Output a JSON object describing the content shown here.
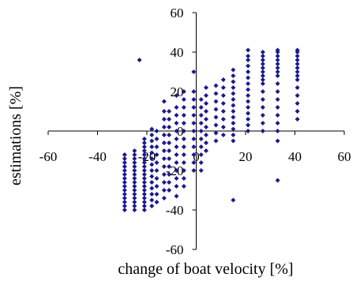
{
  "chart_data": {
    "type": "scatter",
    "title": "",
    "xlabel": "change of boat velocity [%]",
    "ylabel": "estimations [%]",
    "xlim": [
      -60,
      60
    ],
    "ylim": [
      -60,
      60
    ],
    "xticks": [
      "-60",
      "-40",
      "-20",
      "0",
      "20",
      "40",
      "60"
    ],
    "yticks": [
      "60",
      "40",
      "20",
      "0",
      "-20",
      "-40",
      "-60"
    ],
    "grid": false,
    "legend": "none",
    "marker": "diamond",
    "color": "#1a1a8c",
    "series": [
      {
        "points": [
          [
            -29,
            -40
          ],
          [
            -29,
            -38
          ],
          [
            -29,
            -36
          ],
          [
            -29,
            -34
          ],
          [
            -29,
            -32
          ],
          [
            -29,
            -30
          ],
          [
            -29,
            -28
          ],
          [
            -29,
            -26
          ],
          [
            -29,
            -24
          ],
          [
            -29,
            -22
          ],
          [
            -29,
            -20
          ],
          [
            -29,
            -18
          ],
          [
            -29,
            -16
          ],
          [
            -29,
            -14
          ],
          [
            -29,
            -12
          ],
          [
            -25,
            -40
          ],
          [
            -25,
            -38
          ],
          [
            -25,
            -36
          ],
          [
            -25,
            -34
          ],
          [
            -25,
            -32
          ],
          [
            -25,
            -30
          ],
          [
            -25,
            -28
          ],
          [
            -25,
            -26
          ],
          [
            -25,
            -24
          ],
          [
            -25,
            -22
          ],
          [
            -25,
            -20
          ],
          [
            -25,
            -18
          ],
          [
            -25,
            -16
          ],
          [
            -25,
            -14
          ],
          [
            -25,
            -12
          ],
          [
            -25,
            -10
          ],
          [
            -23,
            36
          ],
          [
            -21,
            -40
          ],
          [
            -21,
            -38
          ],
          [
            -21,
            -36
          ],
          [
            -21,
            -34
          ],
          [
            -21,
            -32
          ],
          [
            -21,
            -30
          ],
          [
            -21,
            -28
          ],
          [
            -21,
            -26
          ],
          [
            -21,
            -24
          ],
          [
            -21,
            -22
          ],
          [
            -21,
            -20
          ],
          [
            -21,
            -18
          ],
          [
            -21,
            -16
          ],
          [
            -21,
            -14
          ],
          [
            -21,
            -12
          ],
          [
            -21,
            -10
          ],
          [
            -21,
            -8
          ],
          [
            -21,
            -6
          ],
          [
            -21,
            -4
          ],
          [
            -18,
            -38
          ],
          [
            -18,
            -35
          ],
          [
            -18,
            -32
          ],
          [
            -18,
            -29
          ],
          [
            -18,
            -26
          ],
          [
            -18,
            -23
          ],
          [
            -18,
            -20
          ],
          [
            -18,
            -17
          ],
          [
            -18,
            -14
          ],
          [
            -18,
            -11
          ],
          [
            -18,
            -8
          ],
          [
            -18,
            -5
          ],
          [
            -18,
            -2
          ],
          [
            -18,
            1
          ],
          [
            -16,
            -36
          ],
          [
            -16,
            -32
          ],
          [
            -16,
            -28
          ],
          [
            -16,
            -24
          ],
          [
            -16,
            -20
          ],
          [
            -16,
            -16
          ],
          [
            -16,
            -12
          ],
          [
            -16,
            -8
          ],
          [
            -16,
            -4
          ],
          [
            -16,
            0
          ],
          [
            -13,
            -34
          ],
          [
            -13,
            -30
          ],
          [
            -13,
            -26
          ],
          [
            -13,
            -22
          ],
          [
            -13,
            -18
          ],
          [
            -13,
            -14
          ],
          [
            -13,
            -10
          ],
          [
            -13,
            -6
          ],
          [
            -13,
            -2
          ],
          [
            -13,
            2
          ],
          [
            -13,
            6
          ],
          [
            -13,
            10
          ],
          [
            -13,
            15
          ],
          [
            -11,
            -30
          ],
          [
            -11,
            -26
          ],
          [
            -11,
            -22
          ],
          [
            -11,
            -18
          ],
          [
            -11,
            -14
          ],
          [
            -11,
            -10
          ],
          [
            -11,
            -6
          ],
          [
            -11,
            -2
          ],
          [
            -11,
            2
          ],
          [
            -11,
            6
          ],
          [
            -11,
            10
          ],
          [
            -8,
            -33
          ],
          [
            -8,
            -28
          ],
          [
            -8,
            -24
          ],
          [
            -8,
            -20
          ],
          [
            -8,
            -16
          ],
          [
            -8,
            -12
          ],
          [
            -8,
            -8
          ],
          [
            -8,
            -4
          ],
          [
            -8,
            0
          ],
          [
            -8,
            4
          ],
          [
            -8,
            8
          ],
          [
            -8,
            12
          ],
          [
            -8,
            18
          ],
          [
            -5,
            -28
          ],
          [
            -5,
            -24
          ],
          [
            -5,
            -20
          ],
          [
            -5,
            -16
          ],
          [
            -5,
            -12
          ],
          [
            -5,
            -8
          ],
          [
            -5,
            -4
          ],
          [
            -5,
            0
          ],
          [
            -5,
            4
          ],
          [
            -5,
            8
          ],
          [
            -5,
            12
          ],
          [
            -5,
            16
          ],
          [
            -5,
            20
          ],
          [
            -1,
            -20
          ],
          [
            -1,
            -16
          ],
          [
            -1,
            -12
          ],
          [
            -1,
            -8
          ],
          [
            -1,
            -4
          ],
          [
            -1,
            0
          ],
          [
            -1,
            4
          ],
          [
            -1,
            8
          ],
          [
            -1,
            12
          ],
          [
            -1,
            16
          ],
          [
            -1,
            20
          ],
          [
            -1,
            30
          ],
          [
            2,
            -20
          ],
          [
            2,
            -16
          ],
          [
            2,
            -12
          ],
          [
            2,
            -8
          ],
          [
            2,
            -4
          ],
          [
            2,
            0
          ],
          [
            2,
            4
          ],
          [
            2,
            8
          ],
          [
            2,
            12
          ],
          [
            2,
            16
          ],
          [
            4,
            -10
          ],
          [
            4,
            -6
          ],
          [
            4,
            -2
          ],
          [
            4,
            2
          ],
          [
            4,
            6
          ],
          [
            4,
            10
          ],
          [
            4,
            14
          ],
          [
            4,
            18
          ],
          [
            4,
            22
          ],
          [
            8,
            -5
          ],
          [
            8,
            -1
          ],
          [
            8,
            3
          ],
          [
            8,
            7
          ],
          [
            8,
            11
          ],
          [
            8,
            15
          ],
          [
            8,
            19
          ],
          [
            8,
            23
          ],
          [
            11,
            -2
          ],
          [
            11,
            2
          ],
          [
            11,
            6
          ],
          [
            11,
            10
          ],
          [
            11,
            14
          ],
          [
            11,
            18
          ],
          [
            11,
            22
          ],
          [
            11,
            26
          ],
          [
            15,
            -35
          ],
          [
            15,
            -5
          ],
          [
            15,
            -2
          ],
          [
            15,
            1
          ],
          [
            15,
            4
          ],
          [
            15,
            7
          ],
          [
            15,
            10
          ],
          [
            15,
            13
          ],
          [
            15,
            16
          ],
          [
            15,
            19
          ],
          [
            15,
            22
          ],
          [
            15,
            25
          ],
          [
            15,
            28
          ],
          [
            15,
            31
          ],
          [
            21,
            0
          ],
          [
            21,
            3
          ],
          [
            21,
            6
          ],
          [
            21,
            9
          ],
          [
            21,
            12
          ],
          [
            21,
            15
          ],
          [
            21,
            18
          ],
          [
            21,
            21
          ],
          [
            21,
            24
          ],
          [
            21,
            27
          ],
          [
            21,
            30
          ],
          [
            21,
            33
          ],
          [
            21,
            36
          ],
          [
            21,
            38
          ],
          [
            21,
            41
          ],
          [
            27,
            0
          ],
          [
            27,
            4
          ],
          [
            27,
            8
          ],
          [
            27,
            12
          ],
          [
            27,
            16
          ],
          [
            27,
            20
          ],
          [
            27,
            24
          ],
          [
            27,
            26
          ],
          [
            27,
            28
          ],
          [
            27,
            30
          ],
          [
            27,
            32
          ],
          [
            27,
            34
          ],
          [
            27,
            36
          ],
          [
            27,
            38
          ],
          [
            27,
            40
          ],
          [
            33,
            -25
          ],
          [
            33,
            -5
          ],
          [
            33,
            0
          ],
          [
            33,
            4
          ],
          [
            33,
            8
          ],
          [
            33,
            12
          ],
          [
            33,
            16
          ],
          [
            33,
            20
          ],
          [
            33,
            24
          ],
          [
            33,
            28
          ],
          [
            33,
            30
          ],
          [
            33,
            32
          ],
          [
            33,
            34
          ],
          [
            33,
            36
          ],
          [
            33,
            38
          ],
          [
            33,
            40
          ],
          [
            33,
            41
          ],
          [
            41,
            6
          ],
          [
            41,
            10
          ],
          [
            41,
            14
          ],
          [
            41,
            18
          ],
          [
            41,
            22
          ],
          [
            41,
            26
          ],
          [
            41,
            28
          ],
          [
            41,
            30
          ],
          [
            41,
            32
          ],
          [
            41,
            34
          ],
          [
            41,
            36
          ],
          [
            41,
            38
          ],
          [
            41,
            40
          ],
          [
            41,
            41
          ]
        ]
      }
    ]
  }
}
